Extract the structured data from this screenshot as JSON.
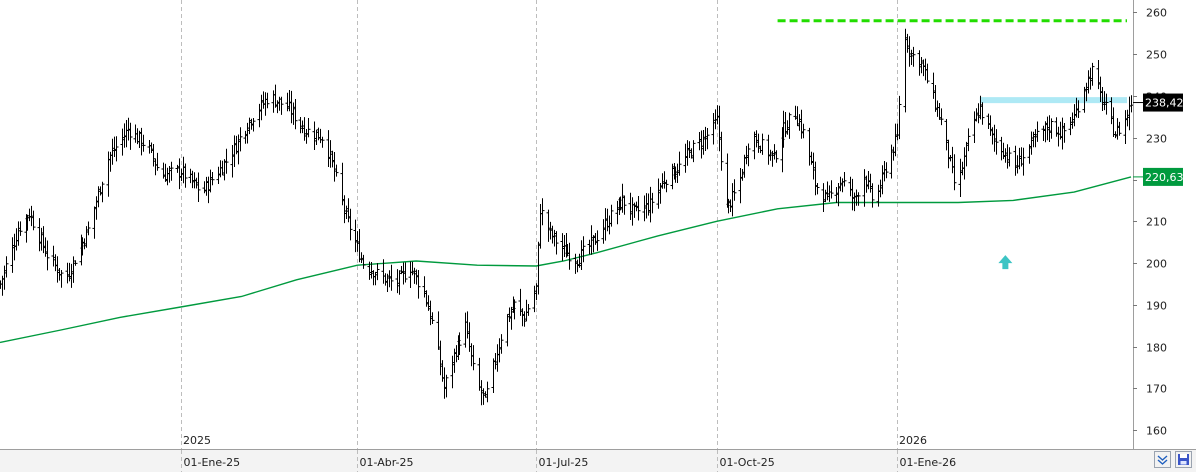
{
  "chart_data": {
    "type": "ohlc",
    "y_axis": {
      "range": [
        156,
        262
      ],
      "ticks": [
        "160",
        "170",
        "180",
        "190",
        "200",
        "210",
        "220",
        "230",
        "240",
        "250",
        "260"
      ],
      "side": "right"
    },
    "x_axis": {
      "date_labels": [
        "01-Ene-25",
        "01-Abr-25",
        "01-Jul-25",
        "01-Oct-25",
        "01-Ene-26"
      ],
      "year_labels": [
        "2025",
        "2026"
      ]
    },
    "grid": "vertical-dashed",
    "last_price_label": "238,42",
    "ma_value_label": "220,63",
    "price_anchors": [
      [
        "2024-10-01",
        195
      ],
      [
        "2024-10-10",
        208
      ],
      [
        "2024-10-16",
        212
      ],
      [
        "2024-10-25",
        202
      ],
      [
        "2024-11-03",
        196
      ],
      [
        "2024-11-15",
        208
      ],
      [
        "2024-11-25",
        225
      ],
      [
        "2024-12-05",
        232
      ],
      [
        "2024-12-15",
        228
      ],
      [
        "2024-12-22",
        221
      ],
      [
        "2025-01-01",
        222
      ],
      [
        "2025-01-12",
        217
      ],
      [
        "2025-01-25",
        225
      ],
      [
        "2025-02-05",
        234
      ],
      [
        "2025-02-15",
        240
      ],
      [
        "2025-02-25",
        237
      ],
      [
        "2025-03-05",
        232
      ],
      [
        "2025-03-15",
        230
      ],
      [
        "2025-03-20",
        222
      ],
      [
        "2025-03-26",
        211
      ],
      [
        "2025-04-04",
        200
      ],
      [
        "2025-04-12",
        197
      ],
      [
        "2025-04-20",
        195
      ],
      [
        "2025-04-28",
        199
      ],
      [
        "2025-05-05",
        193
      ],
      [
        "2025-05-10",
        184
      ],
      [
        "2025-05-15",
        170
      ],
      [
        "2025-05-20",
        178
      ],
      [
        "2025-05-26",
        185
      ],
      [
        "2025-05-31",
        172
      ],
      [
        "2025-06-05",
        167
      ],
      [
        "2025-06-10",
        177
      ],
      [
        "2025-06-15",
        186
      ],
      [
        "2025-06-20",
        190
      ],
      [
        "2025-06-25",
        187
      ],
      [
        "2025-07-01",
        194
      ],
      [
        "2025-07-03",
        213
      ],
      [
        "2025-07-08",
        207
      ],
      [
        "2025-07-15",
        203
      ],
      [
        "2025-07-22",
        201
      ],
      [
        "2025-07-30",
        205
      ],
      [
        "2025-08-06",
        210
      ],
      [
        "2025-08-14",
        215
      ],
      [
        "2025-08-20",
        212
      ],
      [
        "2025-08-28",
        214
      ],
      [
        "2025-09-04",
        220
      ],
      [
        "2025-09-12",
        223
      ],
      [
        "2025-09-18",
        227
      ],
      [
        "2025-09-25",
        230
      ],
      [
        "2025-10-01",
        234
      ],
      [
        "2025-10-06",
        213
      ],
      [
        "2025-10-12",
        218
      ],
      [
        "2025-10-18",
        231
      ],
      [
        "2025-10-24",
        228
      ],
      [
        "2025-10-30",
        225
      ],
      [
        "2025-11-04",
        232
      ],
      [
        "2025-11-10",
        236
      ],
      [
        "2025-11-15",
        230
      ],
      [
        "2025-11-20",
        219
      ],
      [
        "2025-11-26",
        215
      ],
      [
        "2025-12-04",
        220
      ],
      [
        "2025-12-10",
        215
      ],
      [
        "2025-12-15",
        221
      ],
      [
        "2025-12-20",
        214
      ],
      [
        "2025-12-26",
        223
      ],
      [
        "2026-01-01",
        230
      ],
      [
        "2026-01-04",
        255
      ],
      [
        "2026-01-08",
        250
      ],
      [
        "2026-01-13",
        248
      ],
      [
        "2026-01-18",
        241
      ],
      [
        "2026-01-23",
        234
      ],
      [
        "2026-01-27",
        226
      ],
      [
        "2026-01-31",
        217
      ],
      [
        "2026-02-04",
        225
      ],
      [
        "2026-02-08",
        233
      ],
      [
        "2026-02-12",
        237
      ],
      [
        "2026-02-18",
        230
      ],
      [
        "2026-02-24",
        227
      ],
      [
        "2026-03-02",
        223
      ],
      [
        "2026-03-08",
        227
      ],
      [
        "2026-03-14",
        231
      ],
      [
        "2026-03-20",
        233
      ],
      [
        "2026-03-26",
        231
      ],
      [
        "2026-04-01",
        235
      ],
      [
        "2026-04-06",
        242
      ],
      [
        "2026-04-10",
        246
      ],
      [
        "2026-04-14",
        240
      ],
      [
        "2026-04-18",
        236
      ],
      [
        "2026-04-22",
        231
      ],
      [
        "2026-04-26",
        233
      ],
      [
        "2026-04-30",
        238.42
      ]
    ],
    "moving_average": [
      [
        "2024-10-01",
        181
      ],
      [
        "2024-11-01",
        184
      ],
      [
        "2024-12-01",
        187
      ],
      [
        "2025-01-01",
        189.5
      ],
      [
        "2025-02-01",
        192
      ],
      [
        "2025-03-01",
        196
      ],
      [
        "2025-04-01",
        199.5
      ],
      [
        "2025-05-01",
        200.5
      ],
      [
        "2025-06-01",
        199.5
      ],
      [
        "2025-07-01",
        199.3
      ],
      [
        "2025-07-15",
        200.5
      ],
      [
        "2025-08-01",
        202.5
      ],
      [
        "2025-09-01",
        206.5
      ],
      [
        "2025-10-01",
        210
      ],
      [
        "2025-11-01",
        213
      ],
      [
        "2025-12-01",
        214.5
      ],
      [
        "2026-01-01",
        214.5
      ],
      [
        "2026-02-01",
        214.5
      ],
      [
        "2026-03-01",
        215
      ],
      [
        "2026-04-01",
        217
      ],
      [
        "2026-04-30",
        220.63
      ]
    ],
    "resistance_level": 258,
    "support_level": 239,
    "colors": {
      "bars": "#000000",
      "moving_average": "#009a3e",
      "resistance_line": "#22dd00",
      "support_band": "#aee9f5",
      "arrow": "#3cc4c4",
      "grid": "#bdbdbd",
      "price_label_bg": "#000000",
      "ma_label_bg": "#009a3e"
    }
  }
}
